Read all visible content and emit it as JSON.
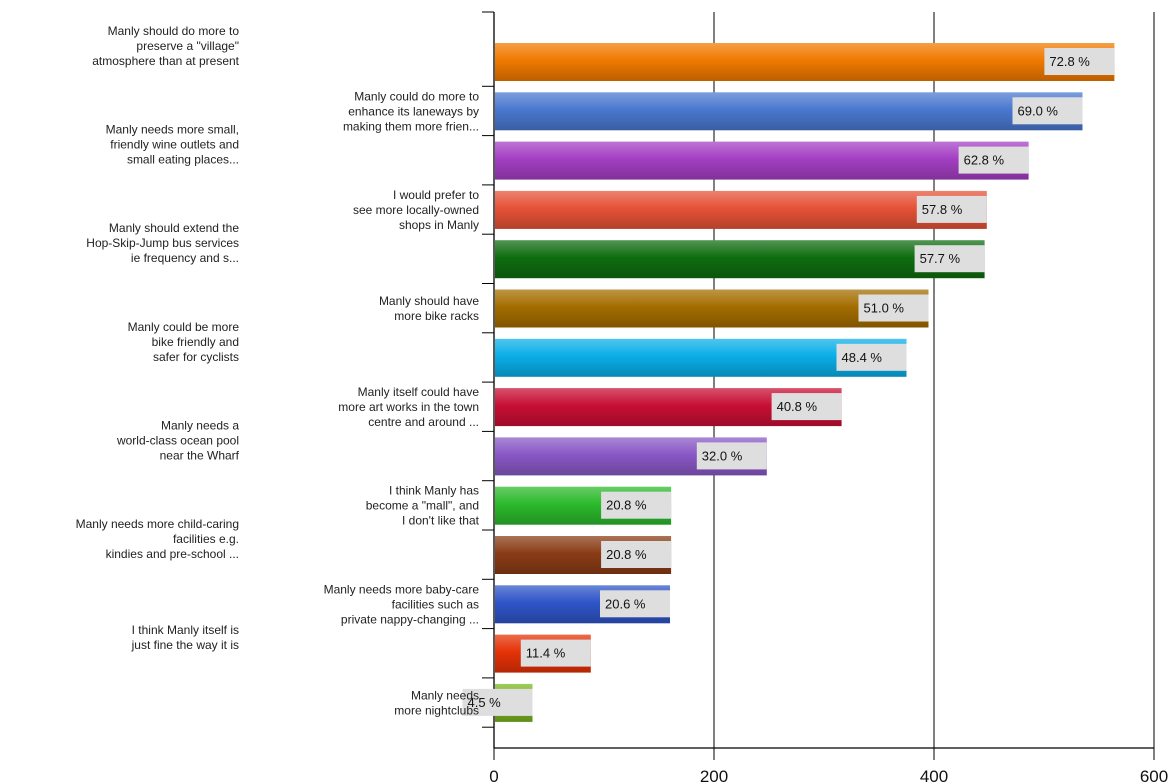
{
  "chart_data": {
    "type": "bar",
    "orientation": "horizontal",
    "categories": [
      "Manly should do more to preserve a \"village\" atmosphere than at present",
      "Manly could do more to enhance its laneways by making them more frien...",
      "Manly needs more small, friendly wine outlets and small eating places...",
      "I would prefer to see more locally-owned shops in Manly",
      "Manly should extend the Hop-Skip-Jump bus services ie frequency and s...",
      "Manly should have more bike racks",
      "Manly could be more bike friendly and safer for cyclists",
      "Manly itself could have more art works in the town centre and around ...",
      "Manly needs a world-class ocean pool near the Wharf",
      "I think Manly has become a \"mall\", and I don't like that",
      "Manly needs more child-caring facilities e.g. kindies and pre-school ...",
      "Manly needs more baby-care facilities such as private nappy-changing ...",
      "I think Manly itself is just fine the way it is",
      "Manly needs more nightclubs"
    ],
    "category_lines": [
      [
        "Manly should do more to",
        "preserve a \"village\"",
        "atmosphere than at present"
      ],
      [
        "Manly could do more to",
        "enhance its laneways by",
        "making them more frien..."
      ],
      [
        "Manly needs more small,",
        "friendly wine outlets and",
        "small eating places..."
      ],
      [
        "I would prefer to",
        "see more locally-owned",
        "shops in Manly"
      ],
      [
        "Manly should extend the",
        "Hop-Skip-Jump bus services",
        "ie frequency and s..."
      ],
      [
        "Manly should have",
        "more bike racks"
      ],
      [
        "Manly could be more",
        "bike friendly and",
        "safer for cyclists"
      ],
      [
        "Manly itself could have",
        "more art works in the town",
        "centre and around ..."
      ],
      [
        "Manly needs a",
        "world-class ocean pool",
        "near the Wharf"
      ],
      [
        "I think Manly has",
        "become a \"mall\", and",
        "I don't like that"
      ],
      [
        "Manly needs more child-caring",
        "facilities e.g.",
        "kindies and pre-school ..."
      ],
      [
        "Manly needs more baby-care",
        "facilities such as",
        "private nappy-changing ..."
      ],
      [
        "I think Manly itself is",
        "just fine the way it is"
      ],
      [
        "Manly needs",
        "more nightclubs"
      ]
    ],
    "values": [
      564,
      535,
      486,
      448,
      446,
      395,
      375,
      316,
      248,
      161,
      161,
      160,
      88,
      35
    ],
    "data_labels": [
      "72.8 %",
      "69.0 %",
      "62.8 %",
      "57.8 %",
      "57.7 %",
      "51.0 %",
      "48.4 %",
      "40.8 %",
      "32.0 %",
      "20.8 %",
      "20.8 %",
      "20.6 %",
      "11.4 %",
      "4.5 %"
    ],
    "colors": [
      "#f07a00",
      "#4a78d0",
      "#a43fc3",
      "#e55237",
      "#0f6d10",
      "#a46d00",
      "#0aaee8",
      "#c80f34",
      "#8958c5",
      "#2cba2c",
      "#8b3c16",
      "#2f55c8",
      "#e53206",
      "#7ab51f"
    ],
    "xlim": [
      0,
      600
    ],
    "xticks": [
      "0",
      "200",
      "400",
      "600"
    ],
    "xtick_values": [
      0,
      200,
      400,
      600
    ],
    "grid": true,
    "legend": "none",
    "title": "",
    "xlabel": "",
    "ylabel": ""
  }
}
